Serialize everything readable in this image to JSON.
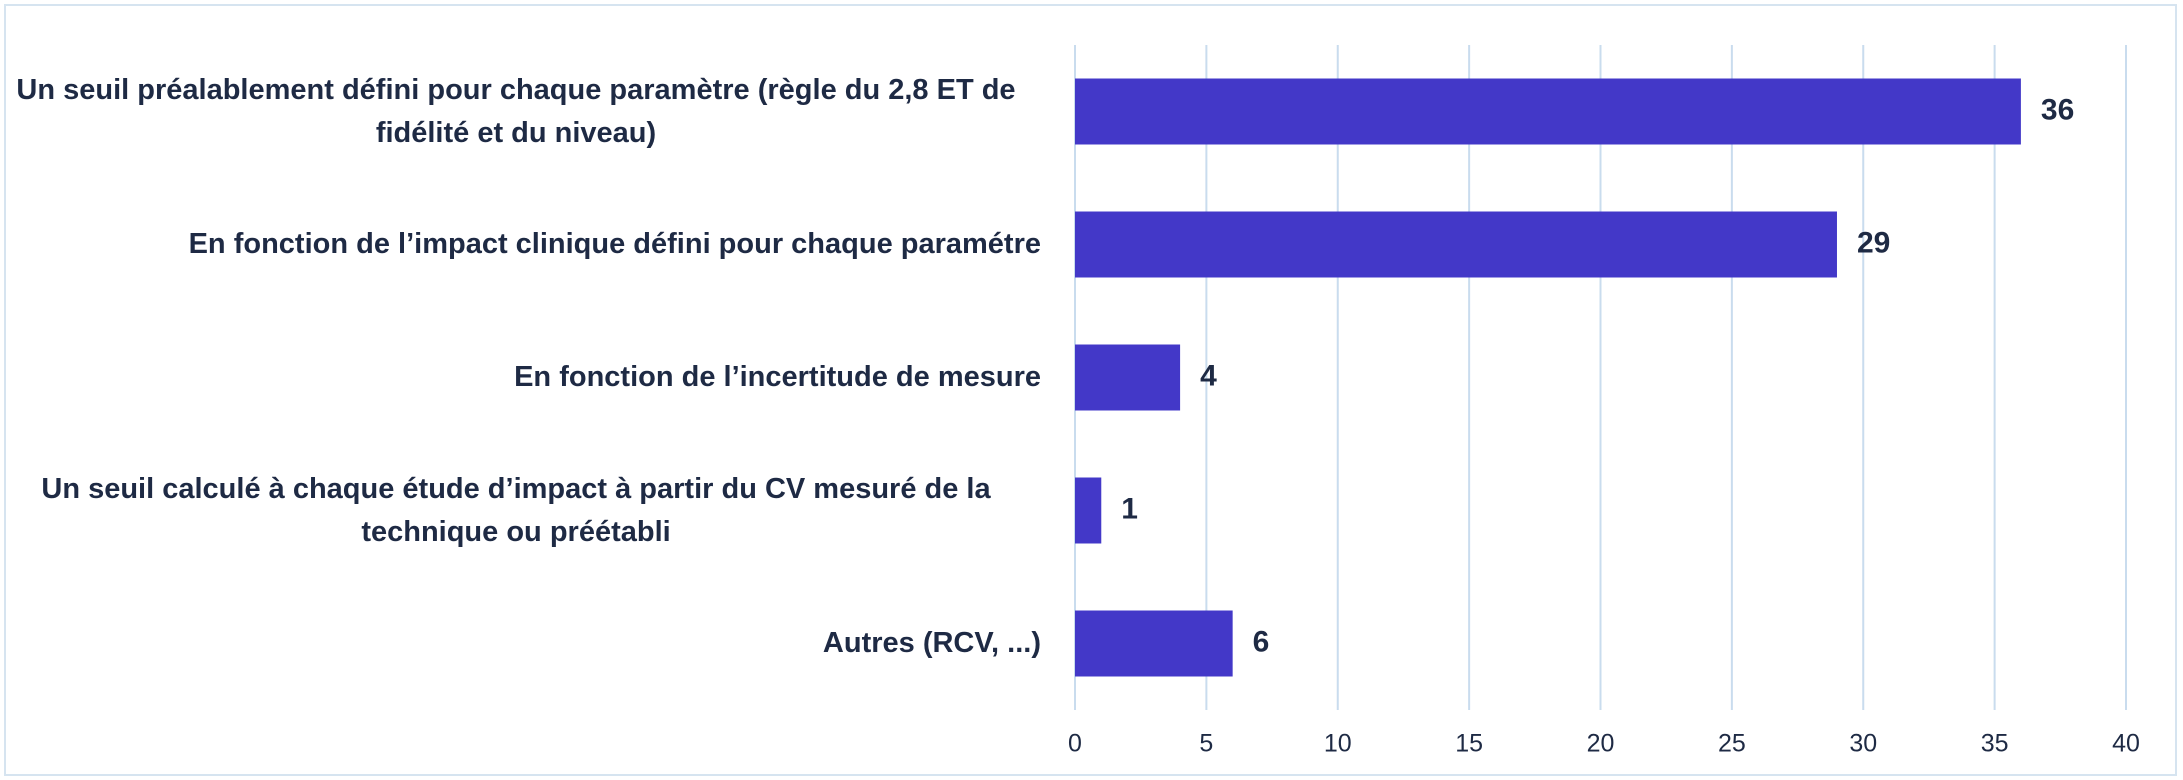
{
  "chart_data": {
    "type": "bar",
    "orientation": "horizontal",
    "categories": [
      "Un seuil préalablement défini pour chaque paramètre (règle du 2,8 ET de fidélité et du niveau)",
      "En fonction de l’impact clinique défini pour chaque paramétre",
      "En fonction de l’incertitude de mesure",
      "Un seuil calculé à chaque étude d’impact à partir du CV mesuré de la technique ou préétabli",
      "Autres (RCV, ...)"
    ],
    "values": [
      36,
      29,
      4,
      1,
      6
    ],
    "color": "#4338c8",
    "xlim": [
      0,
      40
    ],
    "xticks": [
      0,
      5,
      10,
      15,
      20,
      25,
      30,
      35,
      40
    ],
    "grid": true
  }
}
